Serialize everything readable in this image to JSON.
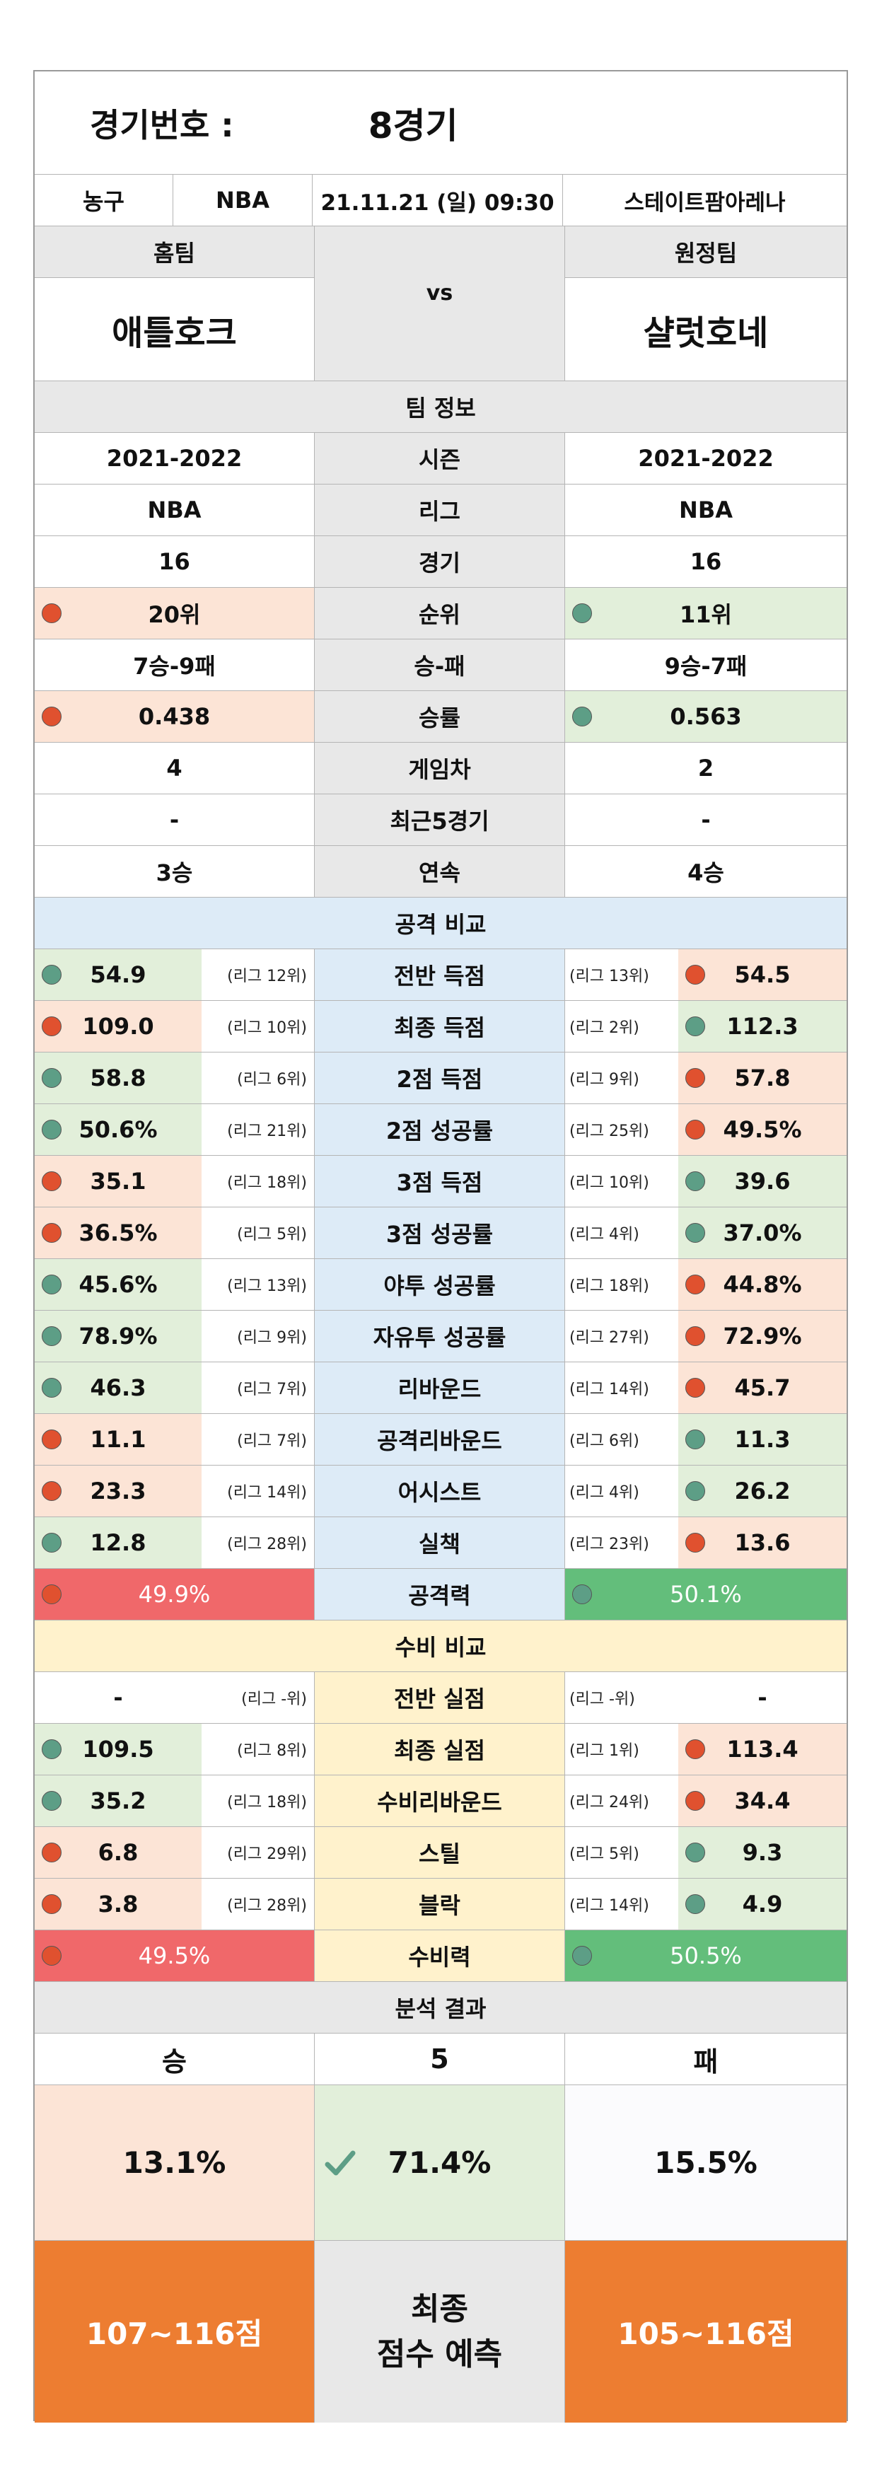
{
  "header": {
    "match_label": "경기번호 :",
    "match_value": "8경기"
  },
  "info": {
    "sport": "농구",
    "league": "NBA",
    "datetime": "21.11.21 (일) 09:30",
    "venue": "스테이트팜아레나"
  },
  "teams": {
    "home_label": "홈팀",
    "away_label": "원정팀",
    "home_name": "애틀호크",
    "away_name": "샬럿호네",
    "vs": "vs"
  },
  "team_info": {
    "title": "팀 정보",
    "rows": [
      {
        "home": "2021-2022",
        "label": "시즌",
        "away": "2021-2022",
        "home_dot": null,
        "away_dot": null,
        "home_bg": "white",
        "away_bg": "white"
      },
      {
        "home": "NBA",
        "label": "리그",
        "away": "NBA",
        "home_dot": null,
        "away_dot": null,
        "home_bg": "white",
        "away_bg": "white"
      },
      {
        "home": "16",
        "label": "경기",
        "away": "16",
        "home_dot": null,
        "away_dot": null,
        "home_bg": "white",
        "away_bg": "white"
      },
      {
        "home": "20위",
        "label": "순위",
        "away": "11위",
        "home_dot": "red",
        "away_dot": "green",
        "home_bg": "lpink",
        "away_bg": "lgreen"
      },
      {
        "home": "7승-9패",
        "label": "승-패",
        "away": "9승-7패",
        "home_dot": null,
        "away_dot": null,
        "home_bg": "white",
        "away_bg": "white"
      },
      {
        "home": "0.438",
        "label": "승률",
        "away": "0.563",
        "home_dot": "red",
        "away_dot": "green",
        "home_bg": "lpink",
        "away_bg": "lgreen"
      },
      {
        "home": "4",
        "label": "게임차",
        "away": "2",
        "home_dot": null,
        "away_dot": null,
        "home_bg": "white",
        "away_bg": "white"
      },
      {
        "home": "-",
        "label": "최근5경기",
        "away": "-",
        "home_dot": null,
        "away_dot": null,
        "home_bg": "white",
        "away_bg": "white"
      },
      {
        "home": "3승",
        "label": "연속",
        "away": "4승",
        "home_dot": null,
        "away_dot": null,
        "home_bg": "white",
        "away_bg": "white"
      }
    ]
  },
  "offense": {
    "title": "공격 비교",
    "rows": [
      {
        "label": "전반 득점",
        "home": "54.9",
        "home_rank": "(리그 12위)",
        "home_dot": "green",
        "away": "54.5",
        "away_rank": "(리그 13위)",
        "away_dot": "red"
      },
      {
        "label": "최종 득점",
        "home": "109.0",
        "home_rank": "(리그 10위)",
        "home_dot": "red",
        "away": "112.3",
        "away_rank": "(리그 2위)",
        "away_dot": "green"
      },
      {
        "label": "2점 득점",
        "home": "58.8",
        "home_rank": "(리그 6위)",
        "home_dot": "green",
        "away": "57.8",
        "away_rank": "(리그 9위)",
        "away_dot": "red"
      },
      {
        "label": "2점 성공률",
        "home": "50.6%",
        "home_rank": "(리그 21위)",
        "home_dot": "green",
        "away": "49.5%",
        "away_rank": "(리그 25위)",
        "away_dot": "red"
      },
      {
        "label": "3점 득점",
        "home": "35.1",
        "home_rank": "(리그 18위)",
        "home_dot": "red",
        "away": "39.6",
        "away_rank": "(리그 10위)",
        "away_dot": "green"
      },
      {
        "label": "3점 성공률",
        "home": "36.5%",
        "home_rank": "(리그 5위)",
        "home_dot": "red",
        "away": "37.0%",
        "away_rank": "(리그 4위)",
        "away_dot": "green"
      },
      {
        "label": "야투 성공률",
        "home": "45.6%",
        "home_rank": "(리그 13위)",
        "home_dot": "green",
        "away": "44.8%",
        "away_rank": "(리그 18위)",
        "away_dot": "red"
      },
      {
        "label": "자유투 성공률",
        "home": "78.9%",
        "home_rank": "(리그 9위)",
        "home_dot": "green",
        "away": "72.9%",
        "away_rank": "(리그 27위)",
        "away_dot": "red"
      },
      {
        "label": "리바운드",
        "home": "46.3",
        "home_rank": "(리그 7위)",
        "home_dot": "green",
        "away": "45.7",
        "away_rank": "(리그 14위)",
        "away_dot": "red"
      },
      {
        "label": "공격리바운드",
        "home": "11.1",
        "home_rank": "(리그 7위)",
        "home_dot": "red",
        "away": "11.3",
        "away_rank": "(리그 6위)",
        "away_dot": "green"
      },
      {
        "label": "어시스트",
        "home": "23.3",
        "home_rank": "(리그 14위)",
        "home_dot": "red",
        "away": "26.2",
        "away_rank": "(리그 4위)",
        "away_dot": "green"
      },
      {
        "label": "실책",
        "home": "12.8",
        "home_rank": "(리그 28위)",
        "home_dot": "green",
        "away": "13.6",
        "away_rank": "(리그 23위)",
        "away_dot": "red"
      }
    ],
    "power": {
      "label": "공격력",
      "home": "49.9%",
      "away": "50.1%"
    }
  },
  "defense": {
    "title": "수비 비교",
    "rows": [
      {
        "label": "전반 실점",
        "home": "-",
        "home_rank": "(리그 -위)",
        "home_dot": null,
        "away": "-",
        "away_rank": "(리그 -위)",
        "away_dot": null
      },
      {
        "label": "최종 실점",
        "home": "109.5",
        "home_rank": "(리그 8위)",
        "home_dot": "green",
        "away": "113.4",
        "away_rank": "(리그 1위)",
        "away_dot": "red"
      },
      {
        "label": "수비리바운드",
        "home": "35.2",
        "home_rank": "(리그 18위)",
        "home_dot": "green",
        "away": "34.4",
        "away_rank": "(리그 24위)",
        "away_dot": "red"
      },
      {
        "label": "스틸",
        "home": "6.8",
        "home_rank": "(리그 29위)",
        "home_dot": "red",
        "away": "9.3",
        "away_rank": "(리그 5위)",
        "away_dot": "green"
      },
      {
        "label": "블락",
        "home": "3.8",
        "home_rank": "(리그 28위)",
        "home_dot": "red",
        "away": "4.9",
        "away_rank": "(리그 14위)",
        "away_dot": "green"
      }
    ],
    "power": {
      "label": "수비력",
      "home": "49.5%",
      "away": "50.5%"
    }
  },
  "result": {
    "title": "분석 결과",
    "win_label": "승",
    "draw_label": "5",
    "loss_label": "패",
    "win_pct": "13.1%",
    "draw_pct": "71.4%",
    "loss_pct": "15.5%",
    "home_score": "107~116점",
    "predict_line1": "최종",
    "predict_line2": "점수 예측",
    "away_score": "105~116점"
  },
  "colors": {
    "dot_red": "#e0512f",
    "dot_green": "#5d9e86",
    "power_red": "#f0686a",
    "power_green": "#63be7b",
    "score_orange": "#ed7d31"
  }
}
